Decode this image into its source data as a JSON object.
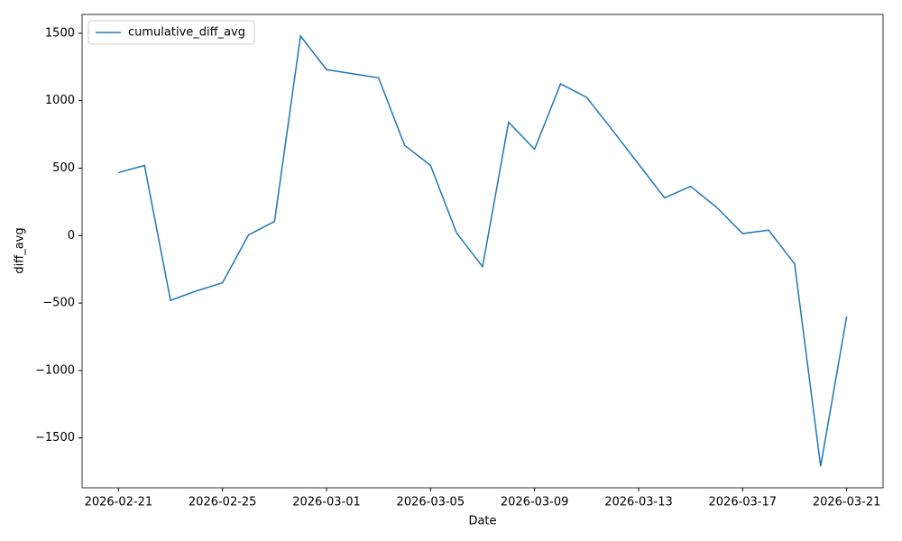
{
  "chart_data": {
    "type": "line",
    "x_label": "Date",
    "y_label": "diff_avg",
    "x": [
      "2026-02-21",
      "2026-02-22",
      "2026-02-23",
      "2026-02-24",
      "2026-02-25",
      "2026-02-26",
      "2026-02-27",
      "2026-02-28",
      "2026-03-01",
      "2026-03-02",
      "2026-03-03",
      "2026-03-04",
      "2026-03-05",
      "2026-03-06",
      "2026-03-07",
      "2026-03-08",
      "2026-03-09",
      "2026-03-10",
      "2026-03-11",
      "2026-03-12",
      "2026-03-13",
      "2026-03-14",
      "2026-03-15",
      "2026-03-16",
      "2026-03-17",
      "2026-03-18",
      "2026-03-19",
      "2026-03-20",
      "2026-03-21"
    ],
    "series": [
      {
        "name": "cumulative_diff_avg",
        "color": "#1f77b4",
        "values": [
          467,
          520,
          -480,
          -410,
          -350,
          5,
          105,
          1480,
          1230,
          1200,
          1170,
          670,
          520,
          20,
          -230,
          840,
          640,
          1125,
          1025,
          780,
          530,
          280,
          365,
          210,
          15,
          40,
          -210,
          -1710,
          -600
        ]
      }
    ],
    "xlim": [
      "2026-02-19T14:24",
      "2026-03-22T09:36"
    ],
    "xticks": [
      "2026-02-21",
      "2026-02-25",
      "2026-03-01",
      "2026-03-05",
      "2026-03-09",
      "2026-03-13",
      "2026-03-17",
      "2026-03-21"
    ],
    "ylim": [
      -1869.5,
      1639.5
    ],
    "yticks": [
      {
        "value": -1500,
        "label": "−1500"
      },
      {
        "value": -1000,
        "label": "−1000"
      },
      {
        "value": -500,
        "label": "−500"
      },
      0,
      500,
      1000,
      1500
    ],
    "legend": "upper left"
  }
}
